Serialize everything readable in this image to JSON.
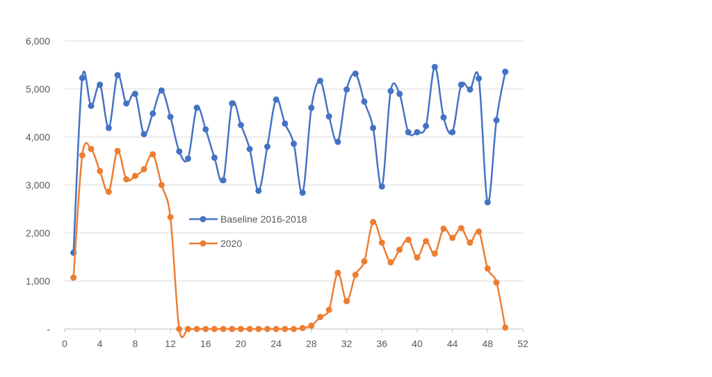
{
  "chart_data": {
    "type": "line",
    "title": "",
    "xlabel": "",
    "ylabel": "",
    "xlim": [
      0,
      52
    ],
    "ylim": [
      0,
      6000
    ],
    "x_ticks": [
      "0",
      "4",
      "8",
      "12",
      "16",
      "20",
      "24",
      "28",
      "32",
      "36",
      "40",
      "44",
      "48",
      "52"
    ],
    "y_ticks": [
      "-",
      "1,000",
      "2,000",
      "3,000",
      "4,000",
      "5,000",
      "6,000"
    ],
    "grid": "horizontal",
    "legend_position": "center",
    "x": [
      1,
      2,
      3,
      4,
      5,
      6,
      7,
      8,
      9,
      10,
      11,
      12,
      13,
      14,
      15,
      16,
      17,
      18,
      19,
      20,
      21,
      22,
      23,
      24,
      25,
      26,
      27,
      28,
      29,
      30,
      31,
      32,
      33,
      34,
      35,
      36,
      37,
      38,
      39,
      40,
      41,
      42,
      43,
      44,
      45,
      46,
      47,
      48,
      49,
      50
    ],
    "series": [
      {
        "name": "Baseline 2016-2018",
        "color": "#4472C4",
        "values": [
          1590,
          5230,
          4650,
          5090,
          4190,
          5290,
          4700,
          4900,
          4060,
          4490,
          4970,
          4420,
          3700,
          3550,
          4610,
          4160,
          3570,
          3100,
          4700,
          4250,
          3750,
          2880,
          3800,
          4780,
          4280,
          3860,
          2840,
          4610,
          5170,
          4430,
          3900,
          4990,
          5320,
          4740,
          4190,
          2970,
          4960,
          4900,
          4100,
          4100,
          4230,
          5460,
          4410,
          4100,
          5090,
          4990,
          5220,
          2640,
          4350,
          5360
        ]
      },
      {
        "name": "2020",
        "color": "#ED7D31",
        "values": [
          1070,
          3620,
          3750,
          3290,
          2860,
          3710,
          3120,
          3190,
          3330,
          3640,
          3000,
          2330,
          0,
          0,
          0,
          0,
          0,
          0,
          0,
          0,
          0,
          0,
          0,
          0,
          0,
          0,
          20,
          70,
          250,
          400,
          1170,
          580,
          1130,
          1410,
          2230,
          1800,
          1390,
          1650,
          1860,
          1490,
          1830,
          1570,
          2090,
          1900,
          2100,
          1800,
          2030,
          1260,
          970,
          30
        ]
      }
    ]
  }
}
